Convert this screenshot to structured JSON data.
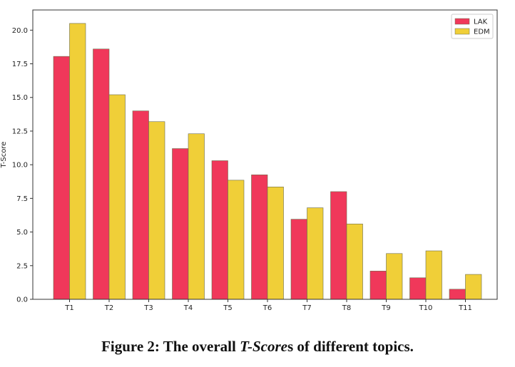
{
  "chart_data": {
    "type": "bar",
    "categories": [
      "T1",
      "T2",
      "T3",
      "T4",
      "T5",
      "T6",
      "T7",
      "T8",
      "T9",
      "T10",
      "T11"
    ],
    "series": [
      {
        "name": "LAK",
        "color": "#f0385a",
        "values": [
          18.05,
          18.6,
          14.0,
          11.2,
          10.3,
          9.25,
          5.95,
          8.0,
          2.1,
          1.6,
          0.75
        ]
      },
      {
        "name": "EDM",
        "color": "#f0cf38",
        "values": [
          20.5,
          15.2,
          13.2,
          12.3,
          8.85,
          8.35,
          6.8,
          5.6,
          3.4,
          3.6,
          1.85
        ]
      }
    ],
    "ylabel": "T-Score",
    "xlabel": "",
    "ylim": [
      0,
      21.5
    ],
    "yticks": [
      "0.0",
      "2.5",
      "5.0",
      "7.5",
      "10.0",
      "12.5",
      "15.0",
      "17.5",
      "20.0"
    ],
    "legend_position": "top-right",
    "grid": false
  },
  "caption": {
    "prefix": "Figure 2: The overall ",
    "emphasis": "T-Score",
    "suffix": "s of different topics."
  }
}
